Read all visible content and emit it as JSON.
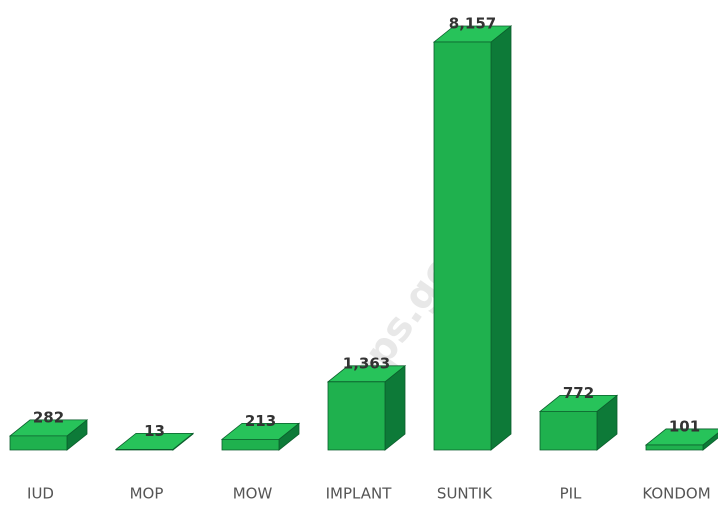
{
  "chart_data": {
    "type": "bar3d",
    "categories": [
      "IUD",
      "MOP",
      "MOW",
      "IMPLANT",
      "SUNTIK",
      "PIL",
      "KONDOM"
    ],
    "values": [
      282,
      13,
      213,
      1363,
      8157,
      772,
      101
    ],
    "value_labels": [
      "282",
      "13",
      "213",
      "1,363",
      "8,157",
      "772",
      "101"
    ],
    "color": "#1fb14e",
    "watermark": "bps.go.id"
  }
}
